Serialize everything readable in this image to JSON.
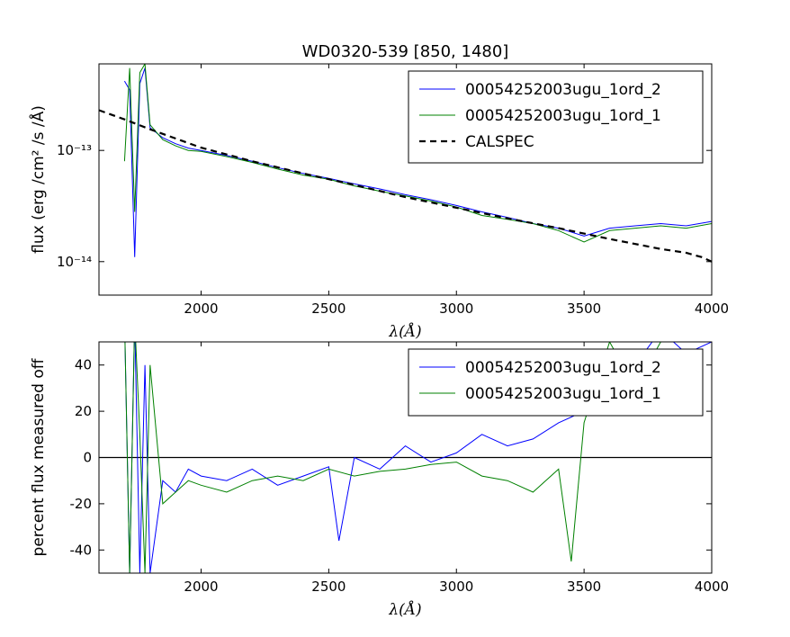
{
  "chart_data": [
    {
      "type": "line",
      "title": "WD0320-539 [850, 1480]",
      "xlabel": "λ(Å)",
      "ylabel": "flux (erg /cm² /s /Å)",
      "yscale": "log",
      "xlim": [
        1600,
        4000
      ],
      "ylim": [
        5e-15,
        6e-13
      ],
      "xticks": [
        2000,
        2500,
        3000,
        3500,
        4000
      ],
      "yticks": [
        1e-14,
        1e-13
      ],
      "ytick_labels": [
        "10⁻¹⁴",
        "10⁻¹³"
      ],
      "legend_position": "top-right",
      "series": [
        {
          "name": "00054252003ugu_1ord_2",
          "color": "#0000ff",
          "style": "solid",
          "x": [
            1700,
            1720,
            1740,
            1760,
            1780,
            1800,
            1850,
            1900,
            1950,
            2000,
            2100,
            2200,
            2300,
            2400,
            2500,
            2600,
            2700,
            2800,
            2900,
            3000,
            3100,
            3200,
            3300,
            3400,
            3500,
            3600,
            3700,
            3800,
            3900,
            4000
          ],
          "values": [
            4.2e-13,
            3.5e-13,
            1.1e-14,
            4e-13,
            5.5e-13,
            1.6e-13,
            1.3e-13,
            1.15e-13,
            1.05e-13,
            1e-13,
            9e-14,
            8e-14,
            7e-14,
            6.2e-14,
            5.6e-14,
            5e-14,
            4.5e-14,
            4e-14,
            3.6e-14,
            3.2e-14,
            2.8e-14,
            2.5e-14,
            2.2e-14,
            2e-14,
            1.7e-14,
            2e-14,
            2.1e-14,
            2.2e-14,
            2.1e-14,
            2.3e-14
          ]
        },
        {
          "name": "00054252003ugu_1ord_1",
          "color": "#008000",
          "style": "solid",
          "x": [
            1700,
            1720,
            1740,
            1760,
            1780,
            1800,
            1850,
            1900,
            1950,
            2000,
            2100,
            2200,
            2300,
            2400,
            2500,
            2600,
            2700,
            2800,
            2900,
            3000,
            3100,
            3200,
            3300,
            3400,
            3500,
            3600,
            3700,
            3800,
            3900,
            4000
          ],
          "values": [
            8e-14,
            5.5e-13,
            2.8e-14,
            5e-13,
            6e-13,
            1.7e-13,
            1.25e-13,
            1.1e-13,
            1e-13,
            9.8e-14,
            8.8e-14,
            7.8e-14,
            6.8e-14,
            6e-14,
            5.5e-14,
            4.8e-14,
            4.3e-14,
            3.9e-14,
            3.5e-14,
            3.1e-14,
            2.6e-14,
            2.4e-14,
            2.2e-14,
            1.9e-14,
            1.5e-14,
            1.9e-14,
            2e-14,
            2.1e-14,
            2e-14,
            2.2e-14
          ]
        },
        {
          "name": "CALSPEC",
          "color": "#000000",
          "style": "dashed",
          "x": [
            1600,
            1700,
            1800,
            1900,
            2000,
            2200,
            2400,
            2600,
            2800,
            3000,
            3200,
            3400,
            3600,
            3800,
            3900,
            3960,
            4000
          ],
          "values": [
            2.3e-13,
            1.9e-13,
            1.55e-13,
            1.28e-13,
            1.06e-13,
            8e-14,
            6.2e-14,
            4.9e-14,
            3.8e-14,
            3.05e-14,
            2.45e-14,
            2e-14,
            1.6e-14,
            1.3e-14,
            1.2e-14,
            1.1e-14,
            1e-14
          ]
        }
      ]
    },
    {
      "type": "line",
      "title": "",
      "xlabel": "λ(Å)",
      "ylabel": "percent flux measured off",
      "xlim": [
        1600,
        4000
      ],
      "ylim": [
        -50,
        50
      ],
      "xticks": [
        2000,
        2500,
        3000,
        3500,
        4000
      ],
      "yticks": [
        -40,
        -20,
        0,
        20,
        40
      ],
      "legend_position": "top-right",
      "reference_line": 0,
      "series": [
        {
          "name": "00054252003ugu_1ord_2",
          "color": "#0000ff",
          "style": "solid",
          "x": [
            1700,
            1720,
            1740,
            1760,
            1780,
            1800,
            1850,
            1900,
            1950,
            2000,
            2100,
            2200,
            2300,
            2400,
            2500,
            2540,
            2600,
            2700,
            2800,
            2900,
            3000,
            3100,
            3200,
            3300,
            3400,
            3500,
            3600,
            3700,
            3800,
            3900,
            4000
          ],
          "values": [
            60,
            -50,
            60,
            -50,
            40,
            -50,
            -10,
            -15,
            -5,
            -8,
            -10,
            -5,
            -12,
            -8,
            -4,
            -36,
            0,
            -5,
            5,
            -2,
            2,
            10,
            5,
            8,
            15,
            20,
            45,
            40,
            55,
            45,
            50
          ]
        },
        {
          "name": "00054252003ugu_1ord_1",
          "color": "#008000",
          "style": "solid",
          "x": [
            1700,
            1720,
            1740,
            1760,
            1780,
            1800,
            1850,
            1900,
            1950,
            2000,
            2100,
            2200,
            2300,
            2400,
            2500,
            2600,
            2700,
            2800,
            2900,
            3000,
            3100,
            3200,
            3300,
            3400,
            3450,
            3500,
            3600,
            3700,
            3800,
            3900,
            4000
          ],
          "values": [
            60,
            -50,
            60,
            10,
            -50,
            40,
            -20,
            -15,
            -10,
            -12,
            -15,
            -10,
            -8,
            -10,
            -5,
            -8,
            -6,
            -5,
            -3,
            -2,
            -8,
            -10,
            -15,
            -5,
            -45,
            15,
            50,
            30,
            50,
            55,
            50
          ]
        }
      ]
    }
  ]
}
